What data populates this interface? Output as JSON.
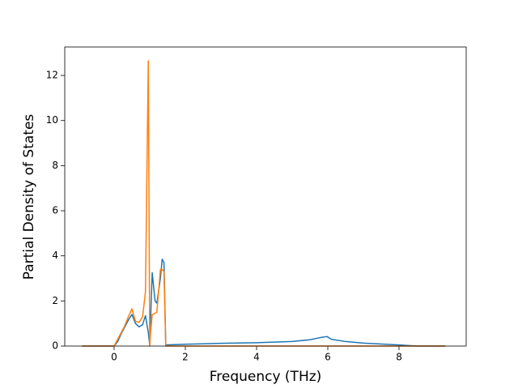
{
  "chart_data": {
    "type": "line",
    "xlabel": "Frequency (THz)",
    "ylabel": "Partial Density of States",
    "x": [
      -0.9,
      0,
      0.1,
      0.2,
      0.3,
      0.4,
      0.5,
      0.6,
      0.7,
      0.8,
      0.88,
      0.96,
      1.0,
      1.02,
      1.07,
      1.15,
      1.2,
      1.3,
      1.35,
      1.4,
      1.45,
      2,
      3,
      4,
      5,
      5.5,
      5.8,
      5.98,
      6.1,
      6.5,
      7,
      8,
      8.5,
      9.3
    ],
    "series": [
      {
        "color": "#1f77b4",
        "values": [
          0,
          0,
          0.2,
          0.55,
          0.85,
          1.15,
          1.4,
          1.0,
          0.85,
          0.95,
          1.35,
          0.6,
          0.05,
          1.0,
          3.25,
          2.0,
          1.9,
          3.0,
          3.85,
          3.7,
          0.05,
          0.08,
          0.12,
          0.15,
          0.2,
          0.28,
          0.38,
          0.42,
          0.3,
          0.2,
          0.13,
          0.05,
          0,
          0
        ]
      },
      {
        "color": "#ff7f0e",
        "values": [
          0,
          0,
          0.3,
          0.6,
          0.9,
          1.3,
          1.65,
          1.1,
          1.05,
          1.3,
          2.4,
          12.65,
          0,
          0.5,
          1.4,
          1.45,
          1.5,
          3.4,
          3.4,
          3.3,
          0,
          0,
          0,
          0,
          0,
          0,
          0,
          0,
          0,
          0,
          0,
          0,
          0,
          0
        ]
      }
    ],
    "xlim": [
      -1.386,
      9.886
    ],
    "ylim": [
      0,
      13.26
    ],
    "xticks": [
      0,
      2,
      4,
      6,
      8
    ],
    "yticks": [
      0,
      2,
      4,
      6,
      8,
      10,
      12
    ]
  }
}
